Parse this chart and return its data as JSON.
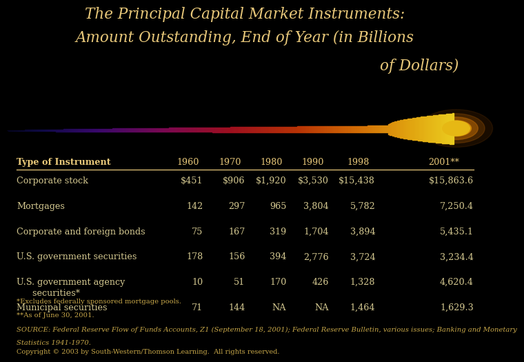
{
  "title_line1": "The Principal Capital Market Instruments:",
  "title_line2": "Amount Outstanding, End of Year (in Billions",
  "title_line3": "of Dollars)",
  "background_color": "#000000",
  "title_color": "#E8C87A",
  "table_header_color": "#E8C87A",
  "table_data_color": "#D4C890",
  "headers": [
    "Type of Instrument",
    "1960",
    "1970",
    "1980",
    "1990",
    "1998",
    "2001**"
  ],
  "rows": [
    [
      "Corporate stock",
      "$451",
      "$906",
      "$1,920",
      "$3,530",
      "$15,438",
      "$15,863.6"
    ],
    [
      "Mortgages",
      "142",
      "297",
      "965",
      "3,804",
      "5,782",
      "7,250.4"
    ],
    [
      "Corporate and foreign bonds",
      "75",
      "167",
      "319",
      "1,704",
      "3,894",
      "5,435.1"
    ],
    [
      "U.S. government securities",
      "178",
      "156",
      "394",
      "2,776",
      "3,724",
      "3,234.4"
    ],
    [
      "U.S. government agency",
      "10",
      "51",
      "170",
      "426",
      "1,328",
      "4,620.4"
    ],
    [
      "Municipal securities",
      "71",
      "144",
      "NA",
      "NA",
      "1,464",
      "1,629.3"
    ]
  ],
  "row4_sub": "  securities*",
  "footnote1": "*Excludes federally sponsored mortgage pools.",
  "footnote2": "**As of June 30, 2001.",
  "footnote3_prefix": "SOURCE: ",
  "footnote3_italic": "Federal Reserve Flow of Funds Accounts, Z1",
  "footnote3_mid": " (September 18, 2001); ",
  "footnote3_italic2": "Federal Reserve Bulletin",
  "footnote3_end": ", various issues; Banking and Monetary\nStatistics 1941-1970.",
  "copyright": "Copyright © 2003 by South-Western/Thomson Learning.  All rights reserved.",
  "footnote_color": "#C8A84A",
  "copyright_color": "#C8A84A",
  "swoosh_colors": [
    [
      0.0,
      [
        0.02,
        0.02,
        0.12
      ]
    ],
    [
      0.08,
      [
        0.06,
        0.04,
        0.28
      ]
    ],
    [
      0.2,
      [
        0.22,
        0.03,
        0.42
      ]
    ],
    [
      0.35,
      [
        0.48,
        0.03,
        0.32
      ]
    ],
    [
      0.5,
      [
        0.62,
        0.06,
        0.12
      ]
    ],
    [
      0.65,
      [
        0.72,
        0.2,
        0.02
      ]
    ],
    [
      0.78,
      [
        0.82,
        0.42,
        0.02
      ]
    ],
    [
      0.9,
      [
        0.88,
        0.64,
        0.06
      ]
    ],
    [
      1.0,
      [
        0.92,
        0.8,
        0.12
      ]
    ]
  ]
}
